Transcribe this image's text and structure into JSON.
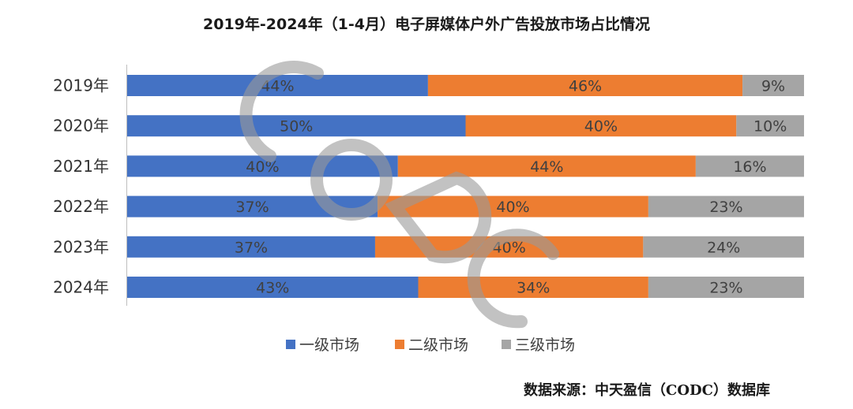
{
  "chart_data": {
    "type": "bar",
    "orientation": "horizontal",
    "stacked": "percent",
    "title": "2019年-2024年（1-4月）电子屏媒体户外广告投放市场占比情况",
    "categories": [
      "2019年",
      "2020年",
      "2021年",
      "2022年",
      "2023年",
      "2024年"
    ],
    "series": [
      {
        "name": "一级市场",
        "color": "#4472C4",
        "values": [
          44,
          50,
          40,
          37,
          37,
          43
        ],
        "labels": [
          "44%",
          "50%",
          "40%",
          "37%",
          "37%",
          "43%"
        ]
      },
      {
        "name": "二级市场",
        "color": "#ED7D31",
        "values": [
          46,
          40,
          44,
          40,
          40,
          34
        ],
        "labels": [
          "46%",
          "40%",
          "44%",
          "40%",
          "40%",
          "34%"
        ]
      },
      {
        "name": "三级市场",
        "color": "#A5A5A5",
        "values": [
          9,
          10,
          16,
          23,
          24,
          23
        ],
        "labels": [
          "9%",
          "10%",
          "16%",
          "23%",
          "24%",
          "23%"
        ]
      }
    ],
    "xlim": [
      0,
      100
    ],
    "legend_position": "bottom",
    "watermark": "CODC",
    "source": "数据来源：中天盈信（CODC）数据库"
  }
}
